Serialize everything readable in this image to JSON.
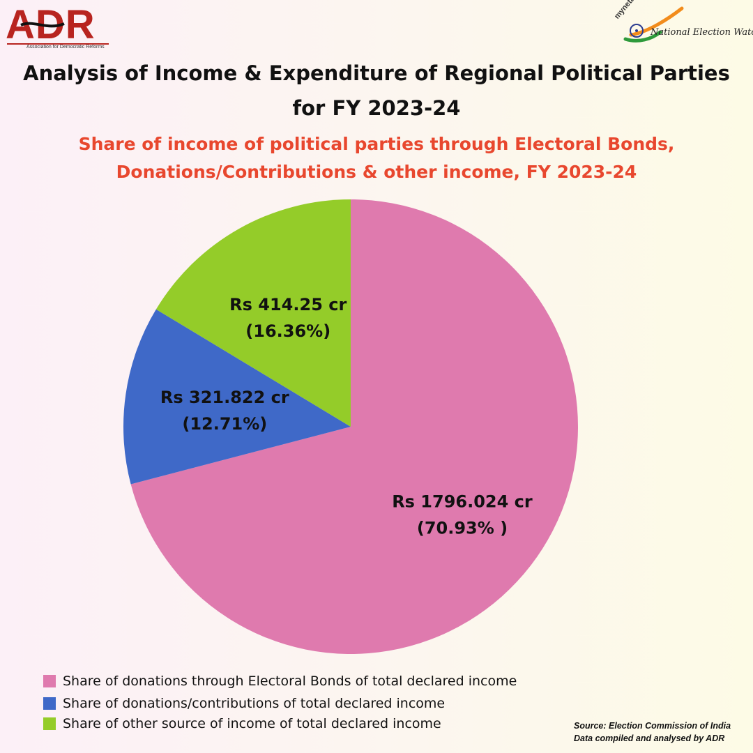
{
  "header": {
    "adr_logo": {
      "letters": "ADR",
      "tagline": "Association for Democratic Reforms"
    },
    "myneta_logo": {
      "domain": "myneta.info",
      "name": "National Election Watch"
    }
  },
  "title_line1": "Analysis of Income & Expenditure of Regional Political Parties",
  "title_line2": "for FY 2023-24",
  "subtitle_line1": "Share of income of political parties through Electoral Bonds,",
  "subtitle_line2": "Donations/Contributions & other income, FY 2023-24",
  "chart_data": {
    "type": "pie",
    "slices": [
      {
        "label": "Share of donations through Electoral Bonds of total declared income",
        "value": 1796.024,
        "percent": 70.93,
        "value_label": "Rs 1796.024 cr",
        "percent_label": "(70.93% )",
        "color": "#df7aae"
      },
      {
        "label": "Share of donations/contributions of total declared income",
        "value": 321.822,
        "percent": 12.71,
        "value_label": "Rs 321.822 cr",
        "percent_label": "(12.71%)",
        "color": "#3f69c8"
      },
      {
        "label": "Share of other source of income of total declared income",
        "value": 414.25,
        "percent": 16.36,
        "value_label": "Rs 414.25 cr",
        "percent_label": "(16.36%)",
        "color": "#94cc29"
      }
    ],
    "legend_position": "bottom-left"
  },
  "source": {
    "line1": "Source: Election Commission of India",
    "line2": "Data compiled and analysed by ADR"
  },
  "colors": {
    "title": "#111111",
    "subtitle": "#e8472e",
    "adr_red": "#b8241f"
  }
}
